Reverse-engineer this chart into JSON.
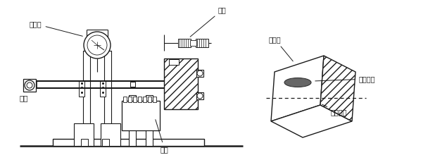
{
  "bg_color": "#ffffff",
  "line_color": "#1a1a1a",
  "label_百分表": "百分表",
  "label_量值": "量值",
  "label_圆规": "圆规",
  "label_齿轮": "齿轮",
  "label_啮合中线": "啮合中线",
  "label_接触斑点": "接触斑点",
  "label_啮合面": "啮合面",
  "figsize": [
    6.08,
    2.27
  ],
  "dpi": 100
}
